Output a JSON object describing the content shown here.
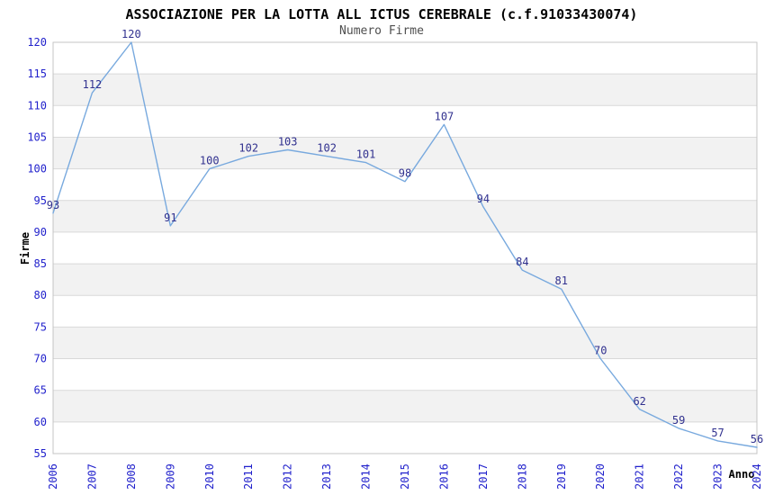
{
  "chart_data": {
    "type": "line",
    "title": "ASSOCIAZIONE PER LA LOTTA ALL ICTUS CEREBRALE (c.f.91033430074)",
    "subtitle": "Numero Firme",
    "xlabel": "Anno",
    "ylabel": "Firme",
    "categories": [
      "2006",
      "2007",
      "2008",
      "2009",
      "2010",
      "2011",
      "2012",
      "2013",
      "2014",
      "2015",
      "2016",
      "2017",
      "2018",
      "2019",
      "2020",
      "2021",
      "2022",
      "2023",
      "2024"
    ],
    "values": [
      93,
      112,
      120,
      91,
      100,
      102,
      103,
      102,
      101,
      98,
      107,
      94,
      84,
      81,
      70,
      62,
      59,
      57,
      56
    ],
    "ylim": [
      55,
      120
    ],
    "ytick_step": 5,
    "grid": true,
    "band_fill": "alternating horizontal bands of 5 units",
    "legend": "none",
    "colors": {
      "line": "#78a9de",
      "value_label": "#31318f",
      "tick_label": "#2222cc",
      "gridline": "#d9d9d9",
      "band": "#f2f2f2",
      "plot_border": "#c4c4c4",
      "title": "#000000",
      "subtitle": "#4f4f4f",
      "axis_title": "#000000",
      "background": "#ffffff"
    }
  }
}
